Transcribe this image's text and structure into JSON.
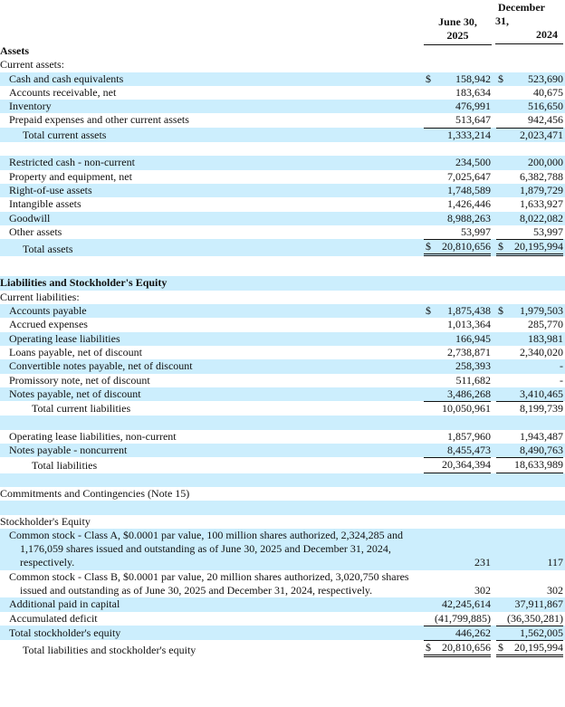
{
  "header": {
    "col1": [
      "June 30,",
      "2025"
    ],
    "col2": [
      "December",
      "31,",
      "2024"
    ]
  },
  "rows": [
    {
      "label": "Assets",
      "bold": true
    },
    {
      "label": "Current assets:"
    },
    {
      "label": "Cash and cash equivalents",
      "indent": 1,
      "band": true,
      "c1": "158,942",
      "c2": "523,690",
      "dollar": true
    },
    {
      "label": "Accounts receivable, net",
      "indent": 1,
      "c1": "183,634",
      "c2": "40,675"
    },
    {
      "label": "Inventory",
      "indent": 1,
      "band": true,
      "c1": "476,991",
      "c2": "516,650"
    },
    {
      "label": "Prepaid expenses and other current assets",
      "indent": 1,
      "c1": "513,647",
      "c2": "942,456"
    },
    {
      "label": "Total current assets",
      "indent": 2,
      "band": true,
      "c1": "1,333,214",
      "c2": "2,023,471",
      "rule": "top"
    },
    {
      "label": ""
    },
    {
      "label": "Restricted cash - non-current",
      "indent": 1,
      "band": true,
      "c1": "234,500",
      "c2": "200,000"
    },
    {
      "label": "Property and equipment, net",
      "indent": 1,
      "c1": "7,025,647",
      "c2": "6,382,788"
    },
    {
      "label": "Right-of-use assets",
      "indent": 1,
      "band": true,
      "c1": "1,748,589",
      "c2": "1,879,729"
    },
    {
      "label": "Intangible assets",
      "indent": 1,
      "c1": "1,426,446",
      "c2": "1,633,927"
    },
    {
      "label": "Goodwill",
      "indent": 1,
      "band": true,
      "c1": "8,988,263",
      "c2": "8,022,082"
    },
    {
      "label": "Other assets",
      "indent": 1,
      "c1": "53,997",
      "c2": "53,997"
    },
    {
      "label": "Total assets",
      "indent": 2,
      "band": true,
      "c1": "20,810,656",
      "c2": "20,195,994",
      "dollar": true,
      "rule": "top-double"
    },
    {
      "label": "",
      "tall": true
    },
    {
      "label": "Liabilities and Stockholder's Equity",
      "bold": true,
      "band": true
    },
    {
      "label": "Current liabilities:"
    },
    {
      "label": "Accounts payable",
      "indent": 1,
      "band": true,
      "c1": "1,875,438",
      "c2": "1,979,503",
      "dollar": true
    },
    {
      "label": "Accrued expenses",
      "indent": 1,
      "c1": "1,013,364",
      "c2": "285,770"
    },
    {
      "label": "Operating lease liabilities",
      "indent": 1,
      "band": true,
      "c1": "166,945",
      "c2": "183,981"
    },
    {
      "label": "Loans payable, net of discount",
      "indent": 1,
      "c1": "2,738,871",
      "c2": "2,340,020"
    },
    {
      "label": "Convertible notes payable, net of discount",
      "indent": 1,
      "band": true,
      "c1": "258,393",
      "c2": "-"
    },
    {
      "label": "Promissory note, net of discount",
      "indent": 1,
      "c1": "511,682",
      "c2": "-"
    },
    {
      "label": "Notes payable, net of discount",
      "indent": 1,
      "band": true,
      "c1": "3,486,268",
      "c2": "3,410,465"
    },
    {
      "label": "Total current liabilities",
      "indent": 3,
      "c1": "10,050,961",
      "c2": "8,199,739",
      "rule": "top"
    },
    {
      "label": "",
      "band": true
    },
    {
      "label": "Operating lease liabilities, non-current",
      "indent": 1,
      "c1": "1,857,960",
      "c2": "1,943,487"
    },
    {
      "label": "Notes payable - noncurrent",
      "indent": 1,
      "band": true,
      "c1": "8,455,473",
      "c2": "8,490,763"
    },
    {
      "label": "Total liabilities",
      "indent": 3,
      "c1": "20,364,394",
      "c2": "18,633,989",
      "rule": "top-under"
    },
    {
      "label": "",
      "band": true
    },
    {
      "label": "Commitments and Contingencies (Note 15)"
    },
    {
      "label": "",
      "band": true
    },
    {
      "label": "Stockholder's Equity"
    },
    {
      "label": "Common stock - Class A, $0.0001 par value, 100 million shares authorized, 2,324,285 and 1,176,059 shares issued and outstanding as of June 30, 2025 and December 31, 2024, respectively.",
      "wrap": true,
      "band": true,
      "c1": "231",
      "c2": "117"
    },
    {
      "label": "Common stock - Class B, $0.0001 par value, 20 million shares authorized, 3,020,750 shares issued and outstanding as of June 30, 2025 and December 31, 2024, respectively.",
      "wrap": true,
      "c1": "302",
      "c2": "302"
    },
    {
      "label": "Additional paid in capital",
      "indent": 1,
      "band": true,
      "c1": "42,245,614",
      "c2": "37,911,867"
    },
    {
      "label": "Accumulated deficit",
      "indent": 1,
      "c1": "(41,799,885)",
      "c2": "(36,350,281)"
    },
    {
      "label": "Total stockholder's equity",
      "indent": 1,
      "band": true,
      "c1": "446,262",
      "c2": "1,562,005",
      "rule": "top"
    },
    {
      "label": "Total liabilities and stockholder's equity",
      "indent": 2,
      "c1": "20,810,656",
      "c2": "20,195,994",
      "dollar": true,
      "rule": "top-double"
    }
  ],
  "currency_symbol": "$",
  "colors": {
    "band": "#cceefd",
    "text": "#111111"
  }
}
